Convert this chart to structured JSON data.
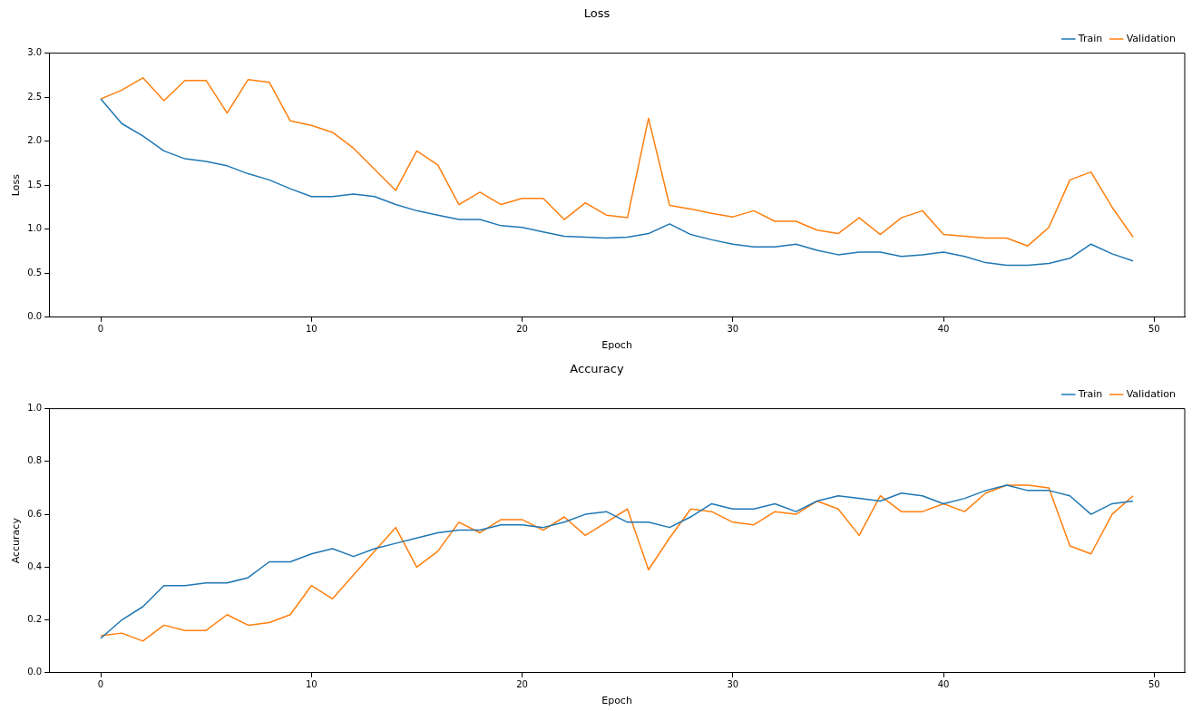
{
  "chart_data": [
    {
      "type": "line",
      "title": "Loss",
      "xlabel": "Epoch",
      "ylabel": "Loss",
      "x": [
        0,
        1,
        2,
        3,
        4,
        5,
        6,
        7,
        8,
        9,
        10,
        11,
        12,
        13,
        14,
        15,
        16,
        17,
        18,
        19,
        20,
        21,
        22,
        23,
        24,
        25,
        26,
        27,
        28,
        29,
        30,
        31,
        32,
        33,
        34,
        35,
        36,
        37,
        38,
        39,
        40,
        41,
        42,
        43,
        44,
        45,
        46,
        47,
        48,
        49
      ],
      "series": [
        {
          "name": "Train",
          "color": "#1f77b4",
          "values": [
            2.48,
            2.2,
            2.06,
            1.89,
            1.8,
            1.77,
            1.72,
            1.63,
            1.56,
            1.46,
            1.37,
            1.37,
            1.4,
            1.37,
            1.28,
            1.21,
            1.16,
            1.11,
            1.11,
            1.04,
            1.02,
            0.97,
            0.92,
            0.91,
            0.9,
            0.91,
            0.95,
            1.06,
            0.94,
            0.88,
            0.83,
            0.8,
            0.8,
            0.83,
            0.76,
            0.71,
            0.74,
            0.74,
            0.69,
            0.71,
            0.74,
            0.69,
            0.62,
            0.59,
            0.59,
            0.61,
            0.67,
            0.83,
            0.72,
            0.64
          ]
        },
        {
          "name": "Validation",
          "color": "#ff7f0e",
          "values": [
            2.48,
            2.58,
            2.72,
            2.46,
            2.69,
            2.69,
            2.32,
            2.7,
            2.67,
            2.23,
            2.18,
            2.1,
            1.92,
            1.68,
            1.44,
            1.89,
            1.73,
            1.28,
            1.42,
            1.28,
            1.35,
            1.35,
            1.11,
            1.3,
            1.16,
            1.13,
            2.26,
            1.27,
            1.23,
            1.18,
            1.14,
            1.21,
            1.09,
            1.09,
            0.99,
            0.95,
            1.13,
            0.94,
            1.13,
            1.21,
            0.94,
            0.92,
            0.9,
            0.9,
            0.81,
            1.02,
            1.56,
            1.65,
            1.25,
            0.91
          ]
        }
      ],
      "xlim": [
        -2.45,
        51.45
      ],
      "xticks": [
        0,
        10,
        20,
        30,
        40,
        50
      ],
      "ylim": [
        0,
        3
      ],
      "yticks": [
        {
          "value": 0,
          "label": "0.0"
        },
        {
          "value": 0.5,
          "label": "0.5"
        },
        {
          "value": 1,
          "label": "1.0"
        },
        {
          "value": 1.5,
          "label": "1.5"
        },
        {
          "value": 2,
          "label": "2.0"
        },
        {
          "value": 2.5,
          "label": "2.5"
        },
        {
          "value": 3,
          "label": "3.0"
        }
      ],
      "legend": "top right",
      "grid": false,
      "marker": "none",
      "line_style": "solid"
    },
    {
      "type": "line",
      "title": "Accuracy",
      "xlabel": "Epoch",
      "ylabel": "Accuracy",
      "x": [
        0,
        1,
        2,
        3,
        4,
        5,
        6,
        7,
        8,
        9,
        10,
        11,
        12,
        13,
        14,
        15,
        16,
        17,
        18,
        19,
        20,
        21,
        22,
        23,
        24,
        25,
        26,
        27,
        28,
        29,
        30,
        31,
        32,
        33,
        34,
        35,
        36,
        37,
        38,
        39,
        40,
        41,
        42,
        43,
        44,
        45,
        46,
        47,
        48,
        49
      ],
      "series": [
        {
          "name": "Train",
          "color": "#1f77b4",
          "values": [
            0.13,
            0.2,
            0.25,
            0.33,
            0.33,
            0.34,
            0.34,
            0.36,
            0.42,
            0.42,
            0.45,
            0.47,
            0.44,
            0.47,
            0.49,
            0.51,
            0.53,
            0.54,
            0.54,
            0.56,
            0.56,
            0.55,
            0.57,
            0.6,
            0.61,
            0.57,
            0.57,
            0.55,
            0.59,
            0.64,
            0.62,
            0.62,
            0.64,
            0.61,
            0.65,
            0.67,
            0.66,
            0.65,
            0.68,
            0.67,
            0.64,
            0.66,
            0.69,
            0.71,
            0.69,
            0.69,
            0.67,
            0.6,
            0.64,
            0.65
          ]
        },
        {
          "name": "Validation",
          "color": "#ff7f0e",
          "values": [
            0.14,
            0.15,
            0.12,
            0.18,
            0.16,
            0.16,
            0.22,
            0.18,
            0.19,
            0.22,
            0.33,
            0.28,
            0.37,
            0.46,
            0.55,
            0.4,
            0.46,
            0.57,
            0.53,
            0.58,
            0.58,
            0.54,
            0.59,
            0.52,
            0.57,
            0.62,
            0.39,
            0.51,
            0.62,
            0.61,
            0.57,
            0.56,
            0.61,
            0.6,
            0.65,
            0.62,
            0.52,
            0.67,
            0.61,
            0.61,
            0.64,
            0.61,
            0.68,
            0.71,
            0.71,
            0.7,
            0.48,
            0.45,
            0.6,
            0.67
          ]
        }
      ],
      "xlim": [
        -2.45,
        51.45
      ],
      "xticks": [
        0,
        10,
        20,
        30,
        40,
        50
      ],
      "ylim": [
        0,
        1
      ],
      "yticks": [
        {
          "value": 0,
          "label": "0.0"
        },
        {
          "value": 0.2,
          "label": "0.2"
        },
        {
          "value": 0.4,
          "label": "0.4"
        },
        {
          "value": 0.6,
          "label": "0.6"
        },
        {
          "value": 0.8,
          "label": "0.8"
        },
        {
          "value": 1,
          "label": "1.0"
        }
      ],
      "legend": "top right",
      "grid": false,
      "marker": "none",
      "line_style": "solid"
    }
  ]
}
